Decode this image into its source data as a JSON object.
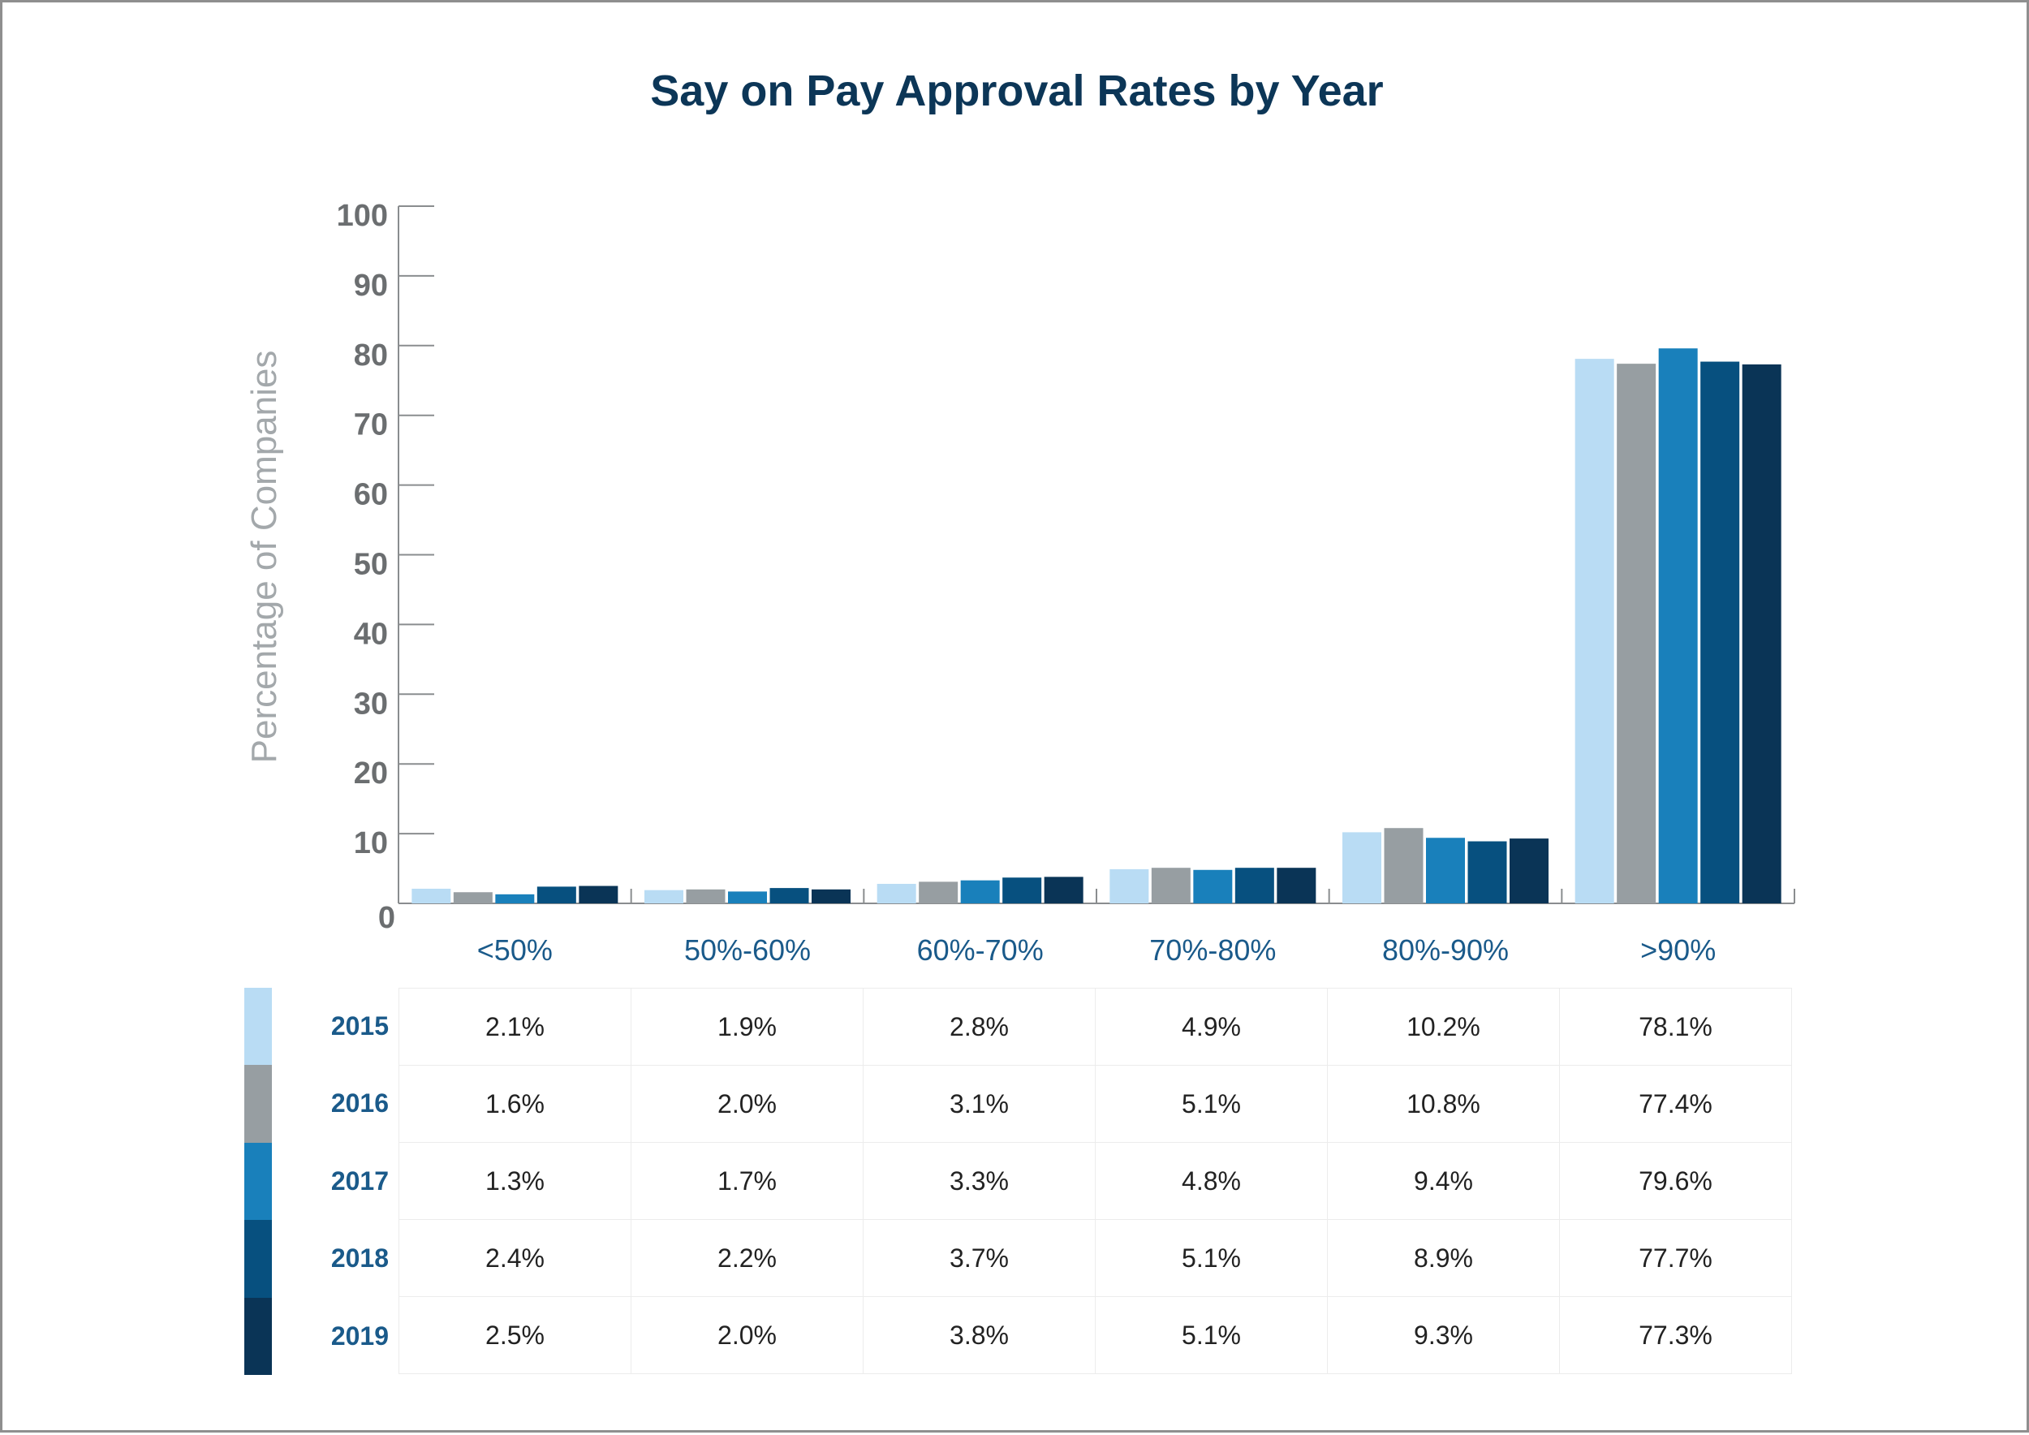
{
  "chart_data": {
    "type": "bar",
    "title": "Say on Pay Approval Rates by Year",
    "ylabel": "Percentage of Companies",
    "xlabel": "",
    "ylim": [
      0,
      100
    ],
    "yticks": [
      0,
      10,
      20,
      30,
      40,
      50,
      60,
      70,
      80,
      90,
      100
    ],
    "categories": [
      "<50%",
      "50%-60%",
      "60%-70%",
      "70%-80%",
      "80%-90%",
      ">90%"
    ],
    "series": [
      {
        "name": "2015",
        "color": "#b9dcf4",
        "values": [
          2.1,
          1.9,
          2.8,
          4.9,
          10.2,
          78.1
        ],
        "labels": [
          "2.1%",
          "1.9%",
          "2.8%",
          "4.9%",
          "10.2%",
          "78.1%"
        ]
      },
      {
        "name": "2016",
        "color": "#979ea2",
        "values": [
          1.6,
          2.0,
          3.1,
          5.1,
          10.8,
          77.4
        ],
        "labels": [
          "1.6%",
          "2.0%",
          "3.1%",
          "5.1%",
          "10.8%",
          "77.4%"
        ]
      },
      {
        "name": "2017",
        "color": "#1980bb",
        "values": [
          1.3,
          1.7,
          3.3,
          4.8,
          9.4,
          79.6
        ],
        "labels": [
          "1.3%",
          "1.7%",
          "3.3%",
          "4.8%",
          "9.4%",
          "79.6%"
        ]
      },
      {
        "name": "2018",
        "color": "#07507f",
        "values": [
          2.4,
          2.2,
          3.7,
          5.1,
          8.9,
          77.7
        ],
        "labels": [
          "2.4%",
          "2.2%",
          "3.7%",
          "5.1%",
          "8.9%",
          "77.7%"
        ]
      },
      {
        "name": "2019",
        "color": "#0a3456",
        "values": [
          2.5,
          2.0,
          3.8,
          5.1,
          9.3,
          77.3
        ],
        "labels": [
          "2.5%",
          "2.0%",
          "3.8%",
          "5.1%",
          "9.3%",
          "77.3%"
        ]
      }
    ],
    "grid": false,
    "legend": "table below chart"
  }
}
